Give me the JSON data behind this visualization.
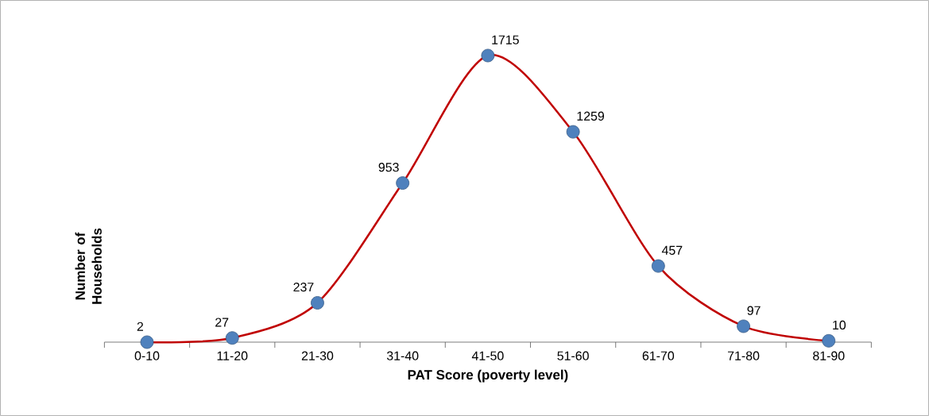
{
  "chart_data": {
    "type": "line",
    "xlabel": "PAT  Score (poverty level)",
    "ylabel": "Number of Households",
    "categories": [
      "0-10",
      "11-20",
      "21-30",
      "31-40",
      "41-50",
      "51-60",
      "61-70",
      "71-80",
      "81-90"
    ],
    "series": [
      {
        "color": "#c00000",
        "colors": [
          "#4f81bd",
          "#4f81bd",
          "#4f81bd",
          "#4f81bd",
          "#4f81bd",
          "#4f81bd",
          "#4f81bd",
          "#4f81bd",
          "#4f81bd"
        ],
        "values": [
          2,
          27,
          237,
          953,
          1715,
          1259,
          457,
          97,
          10
        ]
      }
    ],
    "tick_labels": "x",
    "data_labels": true,
    "marker": "circle",
    "line_style": "solid"
  }
}
